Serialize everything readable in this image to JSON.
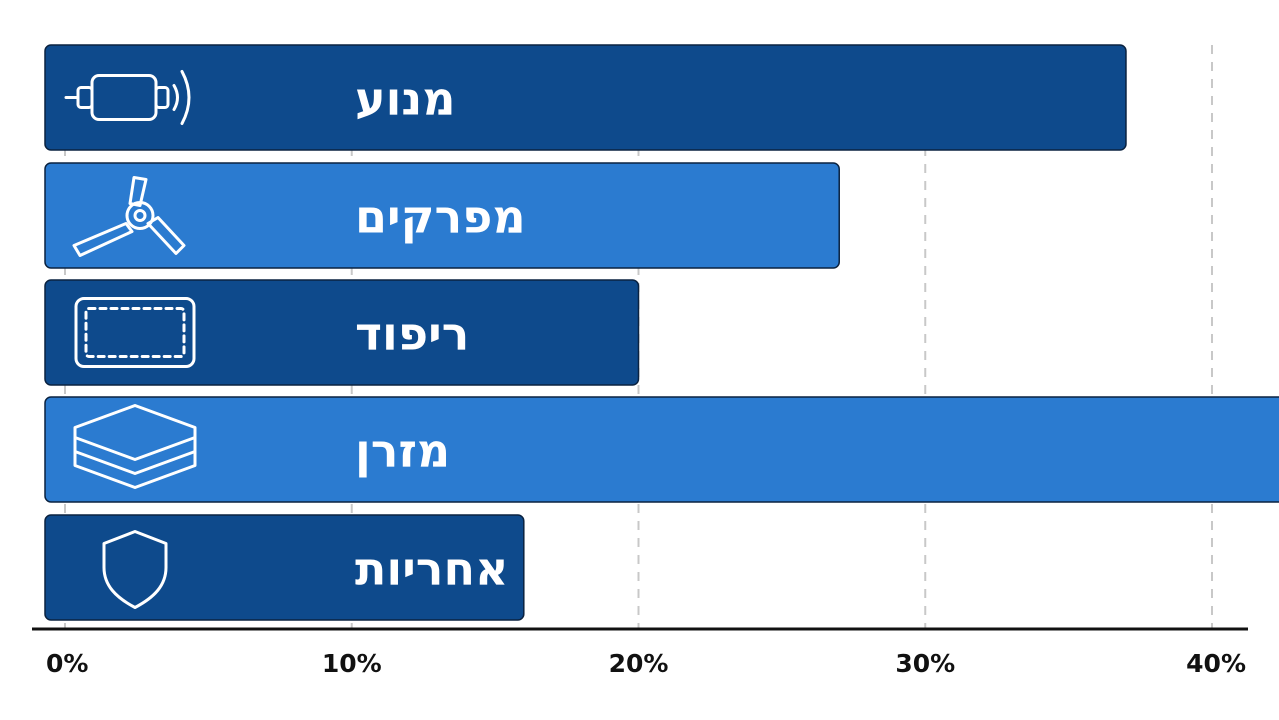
{
  "chart_data": {
    "type": "bar",
    "orientation": "horizontal",
    "categories": [
      "מנוע",
      "מפרקים",
      "ריפוד",
      "מזרן",
      "אחריות"
    ],
    "values": [
      37,
      27,
      20,
      43,
      16
    ],
    "category_icons": [
      "motor-icon",
      "propeller-icon",
      "cushion-icon",
      "mattress-layers-icon",
      "shield-icon"
    ],
    "bar_colors": [
      "#0e4a8c",
      "#2b7bd0",
      "#0e4a8c",
      "#2b7bd0",
      "#0e4a8c"
    ],
    "xlim": [
      0,
      43
    ],
    "x_ticks": [
      0,
      10,
      20,
      30,
      40
    ],
    "x_tick_labels": [
      "0%",
      "10%",
      "20%",
      "30%",
      "40%"
    ],
    "grid": "vertical-dashed",
    "legend": "none"
  }
}
